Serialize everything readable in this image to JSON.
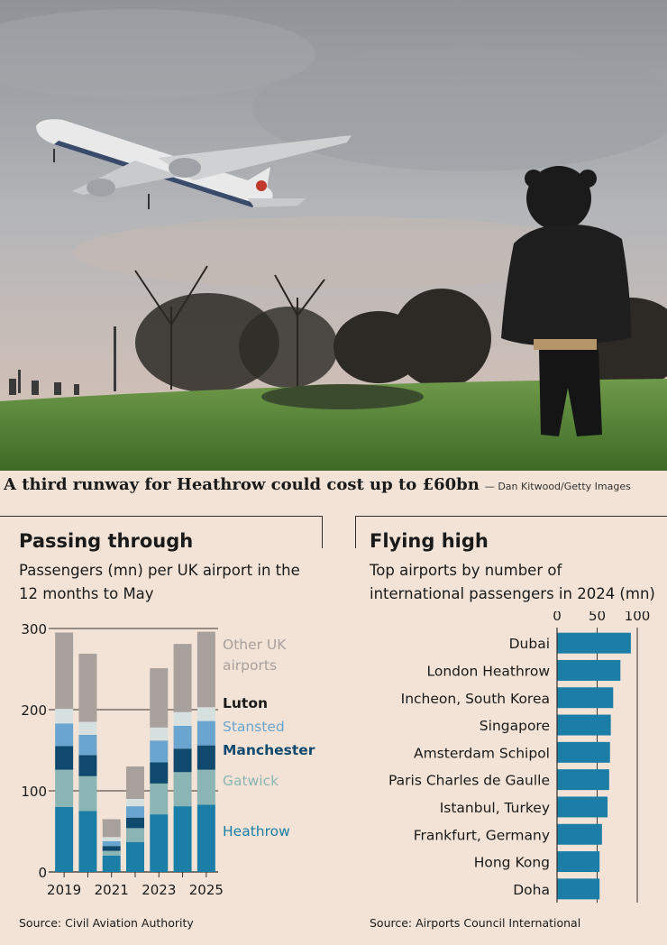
{
  "caption": {
    "headline": "A third runway for Heathrow could cost up to £60bn",
    "credit": "— Dan Kitwood/Getty Images"
  },
  "photo": {
    "description_icon": "airplane-over-child-photo"
  },
  "colors": {
    "background": "#f2e3d6",
    "heathrow": "#1a7ea6",
    "gatwick": "#8bb5b5",
    "manchester": "#0f4a6e",
    "stansted": "#6aa5cf",
    "luton": "#d6e0df",
    "other": "#a8a09d",
    "bar_blue": "#1c7ea6"
  },
  "chart_data": [
    {
      "type": "bar",
      "stacked": true,
      "title": "Passing through",
      "subtitle": "Passengers (mn) per UK airport in the 12 months to May",
      "source": "Source: Civil Aviation Authority",
      "categories": [
        "2019",
        "2020",
        "2021",
        "2022",
        "2023",
        "2024",
        "2025"
      ],
      "x_tick_labels": [
        "2019",
        "2021",
        "2023",
        "2025"
      ],
      "ylim": [
        0,
        300
      ],
      "y_ticks": [
        0,
        100,
        200,
        300
      ],
      "grid": true,
      "legend_placement": "right",
      "series": [
        {
          "name": "Heathrow",
          "values": [
            80,
            75,
            20,
            37,
            71,
            81,
            83
          ]
        },
        {
          "name": "Gatwick",
          "values": [
            46,
            43,
            6,
            17,
            38,
            42,
            43
          ]
        },
        {
          "name": "Manchester",
          "values": [
            29,
            26,
            6,
            13,
            26,
            29,
            30
          ]
        },
        {
          "name": "Stansted",
          "values": [
            28,
            25,
            6,
            14,
            27,
            28,
            30
          ]
        },
        {
          "name": "Luton",
          "values": [
            18,
            16,
            5,
            9,
            16,
            17,
            17
          ]
        },
        {
          "name": "Other UK airports",
          "values": [
            94,
            84,
            22,
            40,
            73,
            84,
            93
          ]
        }
      ]
    },
    {
      "type": "bar",
      "orientation": "horizontal",
      "title": "Flying high",
      "subtitle": "Top airports by number of international passengers in 2024 (mn)",
      "source": "Source: Airports Council International",
      "categories": [
        "Dubai",
        "London Heathrow",
        "Incheon, South Korea",
        "Singapore",
        "Amsterdam Schipol",
        "Paris Charles de Gaulle",
        "Istanbul, Turkey",
        "Frankfurt, Germany",
        "Hong Kong",
        "Doha"
      ],
      "values": [
        92,
        79,
        70,
        67,
        66,
        65,
        63,
        56,
        53,
        53
      ],
      "xlim": [
        0,
        100
      ],
      "x_ticks": [
        0,
        50,
        100
      ],
      "grid": true
    }
  ]
}
